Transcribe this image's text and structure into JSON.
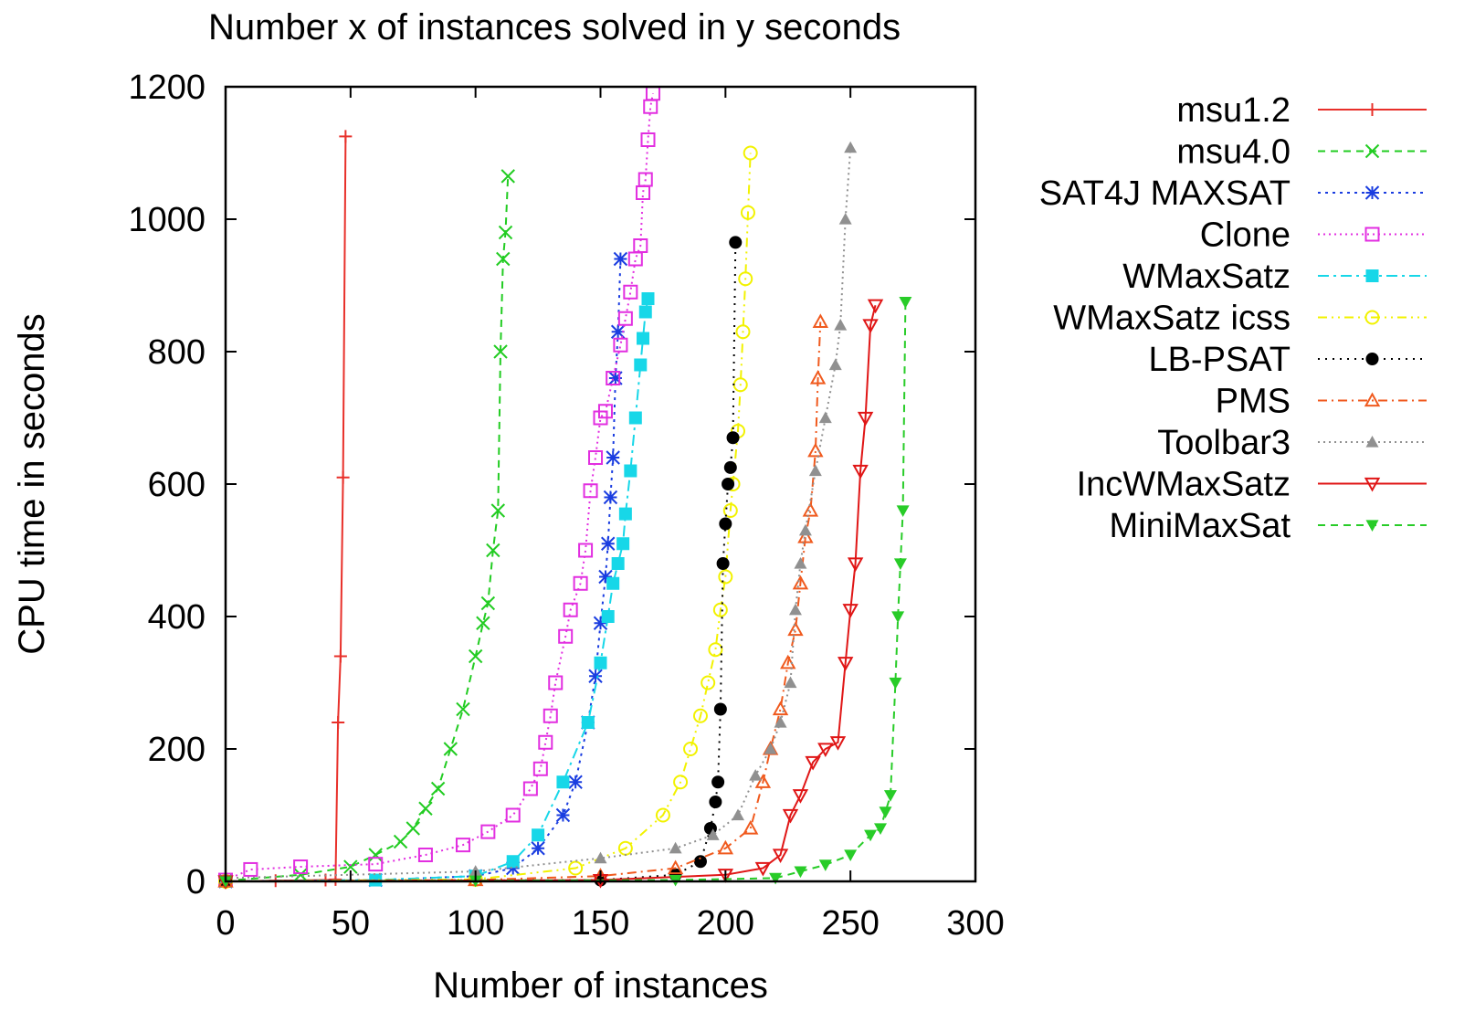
{
  "chart_data": {
    "type": "line",
    "title": "Number x of instances solved in y seconds",
    "xlabel": "Number of instances",
    "ylabel": "CPU time in seconds",
    "xlim": [
      0,
      300
    ],
    "ylim": [
      0,
      1200
    ],
    "xticks": [
      "0",
      "50",
      "100",
      "150",
      "200",
      "250",
      "300"
    ],
    "yticks": [
      "0",
      "200",
      "400",
      "600",
      "800",
      "1000",
      "1200"
    ],
    "grid": false,
    "legend_position": "right",
    "series": [
      {
        "name": "msu1.2",
        "color": "#e8302a",
        "dash": "",
        "marker": "plus",
        "points": [
          [
            0,
            0
          ],
          [
            20,
            1
          ],
          [
            40,
            2
          ],
          [
            44,
            3
          ],
          [
            45,
            240
          ],
          [
            46,
            340
          ],
          [
            47,
            610
          ],
          [
            48,
            1125
          ]
        ]
      },
      {
        "name": "msu4.0",
        "color": "#22cc22",
        "dash": "8,6",
        "marker": "x",
        "points": [
          [
            0,
            1
          ],
          [
            30,
            10
          ],
          [
            50,
            22
          ],
          [
            60,
            40
          ],
          [
            70,
            60
          ],
          [
            75,
            80
          ],
          [
            80,
            110
          ],
          [
            85,
            140
          ],
          [
            90,
            200
          ],
          [
            95,
            260
          ],
          [
            100,
            340
          ],
          [
            103,
            390
          ],
          [
            105,
            420
          ],
          [
            107,
            500
          ],
          [
            109,
            560
          ],
          [
            110,
            800
          ],
          [
            111,
            940
          ],
          [
            112,
            980
          ],
          [
            113,
            1065
          ]
        ]
      },
      {
        "name": "SAT4J MAXSAT",
        "color": "#1a3de0",
        "dash": "3,5",
        "marker": "star",
        "points": [
          [
            0,
            0
          ],
          [
            60,
            2
          ],
          [
            100,
            8
          ],
          [
            115,
            20
          ],
          [
            125,
            50
          ],
          [
            135,
            100
          ],
          [
            140,
            150
          ],
          [
            145,
            240
          ],
          [
            148,
            310
          ],
          [
            150,
            390
          ],
          [
            152,
            460
          ],
          [
            153,
            510
          ],
          [
            154,
            580
          ],
          [
            155,
            640
          ],
          [
            156,
            760
          ],
          [
            157,
            830
          ],
          [
            158,
            940
          ]
        ]
      },
      {
        "name": "Clone",
        "color": "#e22ee0",
        "dash": "2,4",
        "marker": "square-open",
        "points": [
          [
            0,
            2
          ],
          [
            10,
            18
          ],
          [
            30,
            22
          ],
          [
            60,
            26
          ],
          [
            80,
            40
          ],
          [
            95,
            55
          ],
          [
            105,
            75
          ],
          [
            115,
            100
          ],
          [
            122,
            140
          ],
          [
            126,
            170
          ],
          [
            128,
            210
          ],
          [
            130,
            250
          ],
          [
            132,
            300
          ],
          [
            136,
            370
          ],
          [
            138,
            410
          ],
          [
            142,
            450
          ],
          [
            144,
            500
          ],
          [
            146,
            590
          ],
          [
            148,
            640
          ],
          [
            150,
            700
          ],
          [
            152,
            710
          ],
          [
            155,
            760
          ],
          [
            158,
            810
          ],
          [
            160,
            850
          ],
          [
            162,
            890
          ],
          [
            164,
            940
          ],
          [
            166,
            960
          ],
          [
            167,
            1040
          ],
          [
            168,
            1060
          ],
          [
            169,
            1120
          ],
          [
            170,
            1170
          ],
          [
            171,
            1190
          ]
        ]
      },
      {
        "name": "WMaxSatz",
        "color": "#17d7e8",
        "dash": "12,5,3,5",
        "marker": "square-filled",
        "points": [
          [
            0,
            0
          ],
          [
            60,
            2
          ],
          [
            100,
            8
          ],
          [
            115,
            30
          ],
          [
            125,
            70
          ],
          [
            135,
            150
          ],
          [
            145,
            240
          ],
          [
            150,
            330
          ],
          [
            153,
            400
          ],
          [
            155,
            450
          ],
          [
            157,
            480
          ],
          [
            159,
            510
          ],
          [
            160,
            555
          ],
          [
            162,
            620
          ],
          [
            164,
            700
          ],
          [
            166,
            780
          ],
          [
            167,
            820
          ],
          [
            168,
            860
          ],
          [
            169,
            880
          ]
        ]
      },
      {
        "name": "WMaxSatz icss",
        "color": "#f2f200",
        "dash": "10,5,2,5,2,5",
        "marker": "circle-open",
        "points": [
          [
            0,
            0
          ],
          [
            100,
            3
          ],
          [
            140,
            20
          ],
          [
            160,
            50
          ],
          [
            175,
            100
          ],
          [
            182,
            150
          ],
          [
            186,
            200
          ],
          [
            190,
            250
          ],
          [
            193,
            300
          ],
          [
            196,
            350
          ],
          [
            198,
            410
          ],
          [
            200,
            460
          ],
          [
            202,
            560
          ],
          [
            203,
            600
          ],
          [
            205,
            680
          ],
          [
            206,
            750
          ],
          [
            207,
            830
          ],
          [
            208,
            910
          ],
          [
            209,
            1010
          ],
          [
            210,
            1100
          ]
        ]
      },
      {
        "name": "LB-PSAT",
        "color": "#000000",
        "dash": "2,6",
        "marker": "circle-filled",
        "points": [
          [
            0,
            0
          ],
          [
            150,
            2
          ],
          [
            180,
            10
          ],
          [
            190,
            30
          ],
          [
            194,
            80
          ],
          [
            196,
            120
          ],
          [
            197,
            150
          ],
          [
            198,
            260
          ],
          [
            199,
            480
          ],
          [
            200,
            540
          ],
          [
            201,
            600
          ],
          [
            202,
            625
          ],
          [
            203,
            670
          ],
          [
            204,
            965
          ]
        ]
      },
      {
        "name": "PMS",
        "color": "#f05a1e",
        "dash": "10,5,2,5",
        "marker": "triangle-open",
        "points": [
          [
            0,
            0
          ],
          [
            100,
            2
          ],
          [
            150,
            8
          ],
          [
            180,
            20
          ],
          [
            200,
            50
          ],
          [
            210,
            80
          ],
          [
            215,
            150
          ],
          [
            218,
            200
          ],
          [
            222,
            260
          ],
          [
            225,
            330
          ],
          [
            228,
            380
          ],
          [
            230,
            450
          ],
          [
            232,
            520
          ],
          [
            234,
            560
          ],
          [
            236,
            650
          ],
          [
            237,
            760
          ],
          [
            238,
            845
          ]
        ]
      },
      {
        "name": "Toolbar3",
        "color": "#909090",
        "dash": "2,4",
        "marker": "triangle-filled",
        "points": [
          [
            0,
            5
          ],
          [
            100,
            15
          ],
          [
            150,
            35
          ],
          [
            180,
            50
          ],
          [
            195,
            70
          ],
          [
            205,
            100
          ],
          [
            212,
            160
          ],
          [
            218,
            200
          ],
          [
            222,
            240
          ],
          [
            226,
            300
          ],
          [
            228,
            410
          ],
          [
            230,
            480
          ],
          [
            232,
            530
          ],
          [
            236,
            620
          ],
          [
            240,
            700
          ],
          [
            244,
            780
          ],
          [
            246,
            840
          ],
          [
            248,
            1000
          ],
          [
            250,
            1108
          ]
        ]
      },
      {
        "name": "IncWMaxSatz",
        "color": "#e01616",
        "dash": "",
        "marker": "triangle-down-open",
        "points": [
          [
            0,
            0
          ],
          [
            150,
            2
          ],
          [
            200,
            10
          ],
          [
            215,
            20
          ],
          [
            222,
            40
          ],
          [
            226,
            100
          ],
          [
            230,
            130
          ],
          [
            235,
            180
          ],
          [
            240,
            200
          ],
          [
            245,
            210
          ],
          [
            248,
            330
          ],
          [
            250,
            410
          ],
          [
            252,
            480
          ],
          [
            254,
            620
          ],
          [
            256,
            700
          ],
          [
            258,
            840
          ],
          [
            260,
            870
          ]
        ]
      },
      {
        "name": "MiniMaxSat",
        "color": "#28cc28",
        "dash": "8,6",
        "marker": "triangle-down-filled",
        "points": [
          [
            0,
            0
          ],
          [
            100,
            1
          ],
          [
            180,
            2
          ],
          [
            220,
            5
          ],
          [
            230,
            15
          ],
          [
            240,
            25
          ],
          [
            250,
            40
          ],
          [
            258,
            70
          ],
          [
            262,
            80
          ],
          [
            264,
            105
          ],
          [
            266,
            130
          ],
          [
            268,
            300
          ],
          [
            269,
            400
          ],
          [
            270,
            480
          ],
          [
            271,
            560
          ],
          [
            272,
            875
          ]
        ]
      }
    ]
  }
}
